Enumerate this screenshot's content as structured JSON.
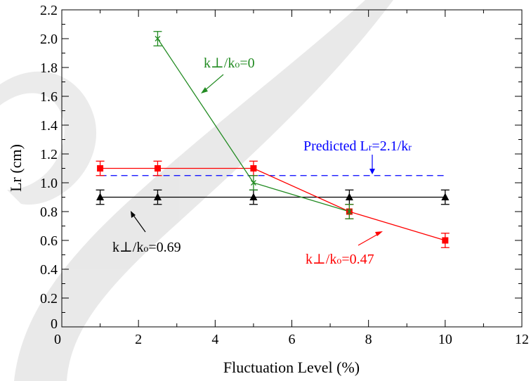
{
  "chart_data": {
    "type": "line",
    "xlabel": "Fluctuation Level (%)",
    "ylabel": "Lr (cm)",
    "xlim": [
      0,
      12
    ],
    "ylim": [
      0,
      2.2
    ],
    "x_ticks": [
      0,
      2,
      4,
      6,
      8,
      10,
      12
    ],
    "x_tick_labels": [
      "0",
      "2",
      "4",
      "6",
      "8",
      "10",
      "12"
    ],
    "y_ticks": [
      0,
      0.2,
      0.4,
      0.6,
      0.8,
      1.0,
      1.2,
      1.4,
      1.6,
      1.8,
      2.0,
      2.2
    ],
    "y_tick_labels": [
      "0",
      "0.2",
      "0.4",
      "0.6",
      "0.8",
      "1.0",
      "1.2",
      "1.4",
      "1.6",
      "1.8",
      "2.0",
      "2.2"
    ],
    "grid": false,
    "series": [
      {
        "name": "k⊥/ko=0.69",
        "color": "#000000",
        "marker": "triangle",
        "x": [
          1,
          2.5,
          5,
          7.5,
          10
        ],
        "y": [
          0.9,
          0.9,
          0.9,
          0.9,
          0.9
        ],
        "err": [
          0.05,
          0.05,
          0.05,
          0.05,
          0.05
        ]
      },
      {
        "name": "k⊥/ko=0.47",
        "color": "#ff0000",
        "marker": "square",
        "x": [
          1,
          2.5,
          5,
          7.5,
          10
        ],
        "y": [
          1.1,
          1.1,
          1.1,
          0.8,
          0.6
        ],
        "err": [
          0.05,
          0.05,
          0.05,
          0.05,
          0.05
        ]
      },
      {
        "name": "k⊥/ko=0",
        "color": "#228b22",
        "marker": "x",
        "x": [
          2.5,
          5,
          7.5
        ],
        "y": [
          2.0,
          1.0,
          0.8
        ],
        "err": [
          0.05,
          0.05,
          0.05
        ]
      }
    ],
    "reference_line": {
      "name": "Predicted Lr=2.1/kr",
      "color": "#0000ff",
      "style": "dashed",
      "y": 1.05,
      "x_range": [
        1,
        10
      ]
    },
    "annotations": [
      {
        "id": "green",
        "color": "#228b22",
        "parts": [
          "k⊥/k",
          "o",
          "=0"
        ]
      },
      {
        "id": "predicted",
        "color": "#0000ff",
        "parts": [
          "Predicted L",
          "r",
          "=2.1/k",
          "r"
        ]
      },
      {
        "id": "black",
        "color": "#000000",
        "parts": [
          "k⊥/k",
          "o",
          "=0.69"
        ]
      },
      {
        "id": "red",
        "color": "#ff0000",
        "parts": [
          "k⊥/k",
          "o",
          "=0.47"
        ]
      }
    ]
  }
}
